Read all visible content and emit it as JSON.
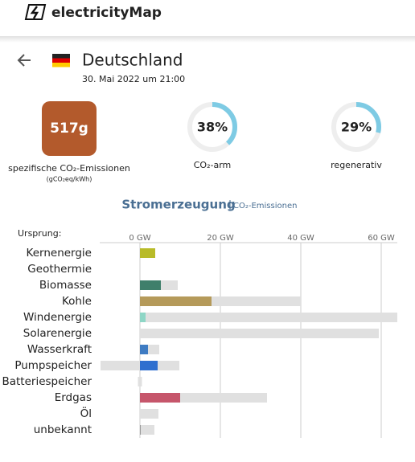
{
  "header": {
    "brand": "electricityMap"
  },
  "zone": {
    "name": "Deutschland",
    "datetime": "30. Mai 2022 um 21:00"
  },
  "intensity": {
    "value": 517,
    "label": "517g",
    "caption": "spezifische CO₂-Emissionen",
    "unit": "(gCO₂eq/kWh)"
  },
  "gauges": [
    {
      "value": 38,
      "label": "38%",
      "caption": "CO₂-arm"
    },
    {
      "value": 29,
      "label": "29%",
      "caption": "regenerativ"
    }
  ],
  "tabs": [
    "Stromerzeugung",
    "CO₂-Emissionen"
  ],
  "chart_data": {
    "type": "bar",
    "orientation": "horizontal",
    "axis_title": "Ursprung:",
    "categories": [
      "Kernenergie",
      "Geothermie",
      "Biomasse",
      "Kohle",
      "Windenergie",
      "Solarenergie",
      "Wasserkraft",
      "Pumpspeicher",
      "Batteriespeicher",
      "Erdgas",
      "Öl",
      "unbekannt"
    ],
    "series": [
      {
        "name": "production",
        "values": [
          3.8,
          0,
          5.2,
          17.8,
          1.4,
          0,
          2,
          4.4,
          0,
          10,
          0,
          0.2
        ],
        "colors": [
          "#b8bb29",
          "#999",
          "#3f7f6b",
          "#b59a5a",
          "#8ed6c6",
          "#f2c94c",
          "#3e7bc2",
          "#2f6fcf",
          "#888",
          "#c6566b",
          "#888",
          "#999"
        ]
      },
      {
        "name": "capacity",
        "color": "#e0e0e0",
        "values": [
          [
            0,
            3.8
          ],
          [
            0,
            0
          ],
          [
            0,
            9.4
          ],
          [
            0,
            40
          ],
          [
            0,
            64
          ],
          [
            0,
            59.4
          ],
          [
            0,
            4.8
          ],
          [
            -9.8,
            9.8
          ],
          [
            -0.5,
            0.5
          ],
          [
            0,
            31.6
          ],
          [
            0,
            4.6
          ],
          [
            0,
            3.6
          ]
        ]
      }
    ],
    "xlim": [
      -10,
      64
    ],
    "xticks": [
      {
        "value": 0,
        "label": "0 GW"
      },
      {
        "value": 20,
        "label": "20 GW"
      },
      {
        "value": 40,
        "label": "40 GW"
      },
      {
        "value": 60,
        "label": "60 GW"
      }
    ],
    "grid": true
  }
}
